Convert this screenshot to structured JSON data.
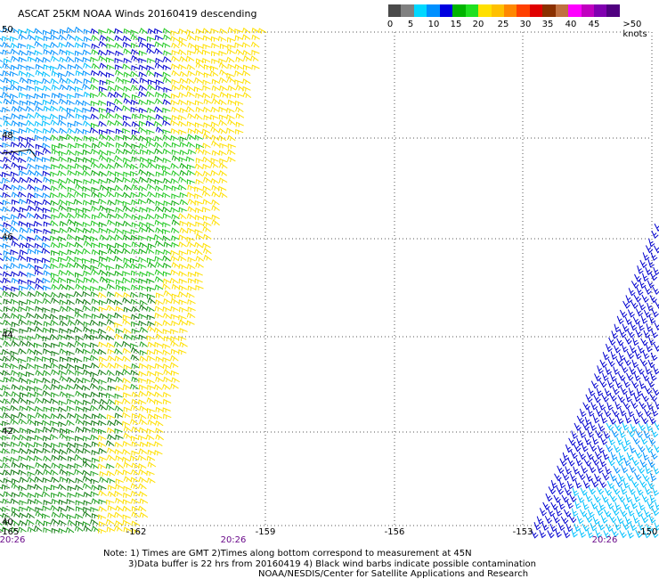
{
  "title": "ASCAT 25KM NOAA Winds 20160419 descending",
  "legend": {
    "colors": [
      "#4a4a4a",
      "#808080",
      "#00d8ff",
      "#0090ff",
      "#0000e0",
      "#00b400",
      "#20e020",
      "#ffe000",
      "#ffc000",
      "#ff8800",
      "#ff4000",
      "#e00000",
      "#8a3000",
      "#c07040",
      "#ff00ff",
      "#c000c0",
      "#8000b0",
      "#500080"
    ],
    "labels": [
      "0",
      "5",
      "10",
      "15",
      "20",
      "25",
      "30",
      "35",
      "40",
      "45",
      ">50 knots"
    ]
  },
  "map": {
    "lat_labels": [
      "50",
      "48",
      "46",
      "44",
      "42",
      "40"
    ],
    "lon_labels": [
      "-165",
      "-162",
      "-159",
      "-156",
      "-153",
      "-150"
    ],
    "time_labels": [
      "20:26",
      "20:26",
      "20:26"
    ],
    "lat_range": [
      40,
      50
    ],
    "lon_range": [
      -165,
      -150
    ],
    "gridline_style": "dotted"
  },
  "notes": {
    "line1": "Note: 1) Times are GMT 2)Times along bottom correspond to measurement at 45N",
    "line2": "3)Data buffer is 22 hrs from 20160419 4) Black wind barbs indicate possible contamination",
    "line3": "NOAA/NESDIS/Center for Satellite Applications and Research"
  }
}
